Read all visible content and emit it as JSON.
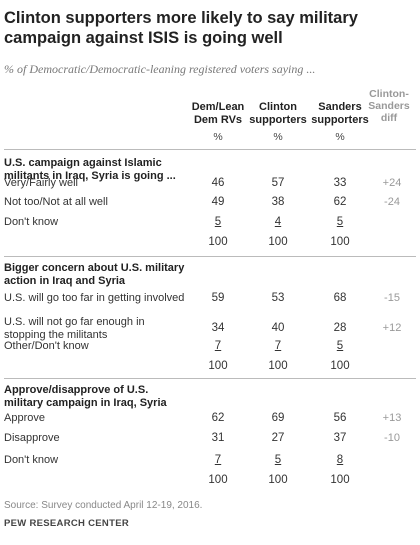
{
  "chart_data": {
    "type": "table",
    "title": "Clinton supporters more likely to say military campaign against ISIS is going well",
    "subtitle": "% of Democratic/Democratic-leaning registered voters saying ...",
    "columns": [
      "Dem/Lean\nDem RVs",
      "Clinton\nsupporters",
      "Sanders\nsupporters"
    ],
    "column_units": [
      "%",
      "%",
      "%"
    ],
    "diff_header": "Clinton-\nSanders\ndiff",
    "sections": [
      {
        "header": "U.S. campaign against Islamic\nmilitants in Iraq, Syria is going ...",
        "rows": [
          {
            "label": "Very/Fairly well",
            "values": [
              "46",
              "57",
              "33"
            ],
            "diff": "+24"
          },
          {
            "label": "Not too/Not at all well",
            "values": [
              "49",
              "38",
              "62"
            ],
            "diff": "-24"
          },
          {
            "label": "Don't know",
            "values": [
              "5",
              "4",
              "5"
            ],
            "diff": ""
          },
          {
            "label": "",
            "values": [
              "100",
              "100",
              "100"
            ],
            "diff": ""
          }
        ]
      },
      {
        "header": "Bigger concern about U.S. military\naction in Iraq and Syria",
        "rows": [
          {
            "label": "U.S. will go too far in getting involved",
            "values": [
              "59",
              "53",
              "68"
            ],
            "diff": "-15"
          },
          {
            "label": "U.S. will not go far enough in\nstopping the militants",
            "values": [
              "34",
              "40",
              "28"
            ],
            "diff": "+12"
          },
          {
            "label": "Other/Don't know",
            "values": [
              "7",
              "7",
              "5"
            ],
            "diff": ""
          },
          {
            "label": "",
            "values": [
              "100",
              "100",
              "100"
            ],
            "diff": ""
          }
        ]
      },
      {
        "header": "Approve/disapprove of U.S.\nmilitary campaign in Iraq, Syria",
        "rows": [
          {
            "label": "Approve",
            "values": [
              "62",
              "69",
              "56"
            ],
            "diff": "+13"
          },
          {
            "label": "Disapprove",
            "values": [
              "31",
              "27",
              "37"
            ],
            "diff": "-10"
          },
          {
            "label": "Don't know",
            "values": [
              "7",
              "5",
              "8"
            ],
            "diff": ""
          },
          {
            "label": "",
            "values": [
              "100",
              "100",
              "100"
            ],
            "diff": ""
          }
        ]
      }
    ],
    "source": "Source: Survey conducted April 12-19, 2016.",
    "organization": "PEW RESEARCH CENTER"
  }
}
